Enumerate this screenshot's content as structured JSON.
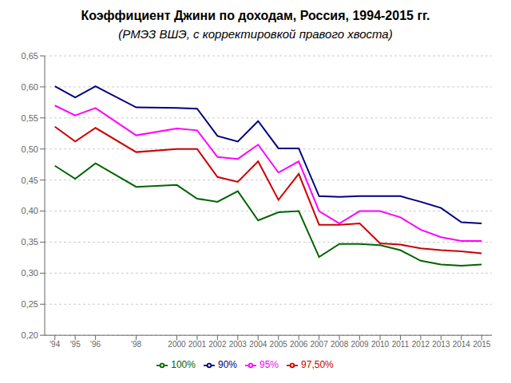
{
  "chart_data": {
    "type": "line",
    "title": "Коэффициент Джини по доходам, Россия, 1994-2015 гг.",
    "subtitle": "(РМЭЗ ВШЭ, с корректировкой правого хвоста)",
    "x": [
      1994,
      1995,
      1996,
      1998,
      2000,
      2001,
      2002,
      2003,
      2004,
      2005,
      2006,
      2007,
      2008,
      2009,
      2010,
      2011,
      2012,
      2013,
      2014,
      2015
    ],
    "xlim": [
      1993.5,
      2015.5
    ],
    "xticks": [
      {
        "value": 1994,
        "label": "'94"
      },
      {
        "value": 1995,
        "label": "'95"
      },
      {
        "value": 1996,
        "label": "'96"
      },
      {
        "value": 1998,
        "label": "'98"
      },
      2000,
      2001,
      2002,
      2003,
      2004,
      2005,
      2006,
      2007,
      2008,
      2009,
      2010,
      2011,
      2012,
      2013,
      2014,
      2015
    ],
    "ylim": [
      0.2,
      0.65
    ],
    "yticks": [
      {
        "value": 0.2,
        "label": "0,20"
      },
      {
        "value": 0.25,
        "label": "0,25"
      },
      {
        "value": 0.3,
        "label": "0,30"
      },
      {
        "value": 0.35,
        "label": "0,35"
      },
      {
        "value": 0.4,
        "label": "0,40"
      },
      {
        "value": 0.45,
        "label": "0,45"
      },
      {
        "value": 0.5,
        "label": "0,50"
      },
      {
        "value": 0.55,
        "label": "0,55"
      },
      {
        "value": 0.6,
        "label": "0,60"
      },
      {
        "value": 0.65,
        "label": "0,65"
      }
    ],
    "grid": true,
    "legend": "bottom",
    "series": [
      {
        "name": "90%",
        "color": "#000080",
        "values": [
          0.601,
          0.583,
          0.601,
          0.567,
          0.566,
          0.565,
          0.521,
          0.512,
          0.545,
          0.501,
          0.501,
          0.424,
          0.423,
          0.424,
          0.424,
          0.424,
          0.415,
          0.405,
          0.382,
          0.38
        ]
      },
      {
        "name": "95%",
        "color": "#FF00FF",
        "values": [
          0.57,
          0.554,
          0.566,
          0.522,
          0.533,
          0.53,
          0.487,
          0.484,
          0.507,
          0.462,
          0.48,
          0.4,
          0.38,
          0.4,
          0.4,
          0.39,
          0.37,
          0.358,
          0.352,
          0.352
        ]
      },
      {
        "name": "97,50%",
        "color": "#CC0000",
        "values": [
          0.536,
          0.512,
          0.534,
          0.495,
          0.5,
          0.5,
          0.455,
          0.447,
          0.48,
          0.418,
          0.46,
          0.378,
          0.378,
          0.38,
          0.348,
          0.346,
          0.34,
          0.337,
          0.335,
          0.332
        ]
      },
      {
        "name": "100%",
        "color": "#006400",
        "values": [
          0.473,
          0.452,
          0.477,
          0.439,
          0.442,
          0.42,
          0.415,
          0.432,
          0.385,
          0.398,
          0.4,
          0.326,
          0.347,
          0.347,
          0.345,
          0.337,
          0.32,
          0.314,
          0.312,
          0.314
        ]
      }
    ]
  }
}
